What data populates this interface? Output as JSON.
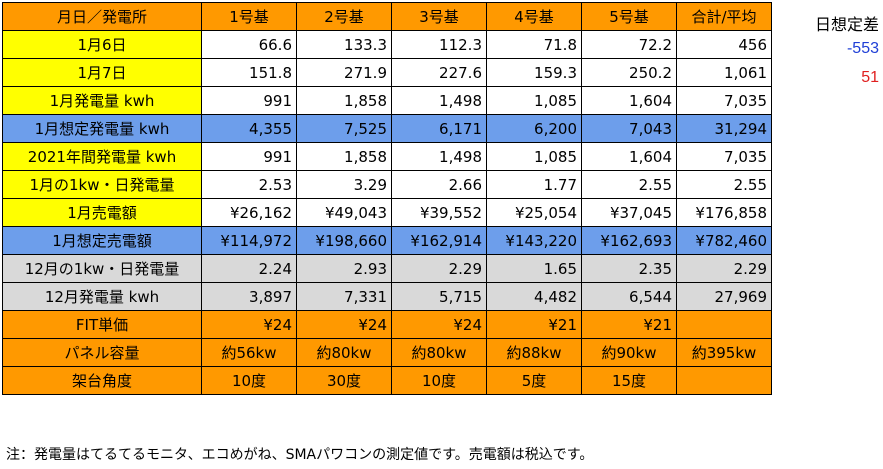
{
  "header": {
    "label": "月日／発電所",
    "columns": [
      "1号基",
      "2号基",
      "3号基",
      "4号基",
      "5号基",
      "合計/平均"
    ]
  },
  "rows": [
    {
      "label": "1月6日",
      "label_bg": "yellow",
      "cell_bg": "white",
      "align": "num",
      "values": [
        "66.6",
        "133.3",
        "112.3",
        "71.8",
        "72.2",
        "456"
      ]
    },
    {
      "label": "1月7日",
      "label_bg": "yellow",
      "cell_bg": "white",
      "align": "num",
      "values": [
        "151.8",
        "271.9",
        "227.6",
        "159.3",
        "250.2",
        "1,061"
      ]
    },
    {
      "label": "1月発電量 kwh",
      "label_bg": "yellow",
      "cell_bg": "white",
      "align": "num",
      "values": [
        "991",
        "1,858",
        "1,498",
        "1,085",
        "1,604",
        "7,035"
      ]
    },
    {
      "label": "1月想定発電量 kwh",
      "label_bg": "blue",
      "cell_bg": "blue",
      "align": "num",
      "values": [
        "4,355",
        "7,525",
        "6,171",
        "6,200",
        "7,043",
        "31,294"
      ]
    },
    {
      "label": "2021年間発電量 kwh",
      "label_bg": "yellow",
      "cell_bg": "white",
      "align": "num",
      "values": [
        "991",
        "1,858",
        "1,498",
        "1,085",
        "1,604",
        "7,035"
      ]
    },
    {
      "label": "1月の1kw・日発電量",
      "label_bg": "yellow",
      "cell_bg": "white",
      "align": "num",
      "values": [
        "2.53",
        "3.29",
        "2.66",
        "1.77",
        "2.55",
        "2.55"
      ]
    },
    {
      "label": "1月売電額",
      "label_bg": "yellow",
      "cell_bg": "white",
      "align": "num",
      "values": [
        "¥26,162",
        "¥49,043",
        "¥39,552",
        "¥25,054",
        "¥37,045",
        "¥176,858"
      ]
    },
    {
      "label": "1月想定売電額",
      "label_bg": "blue",
      "cell_bg": "blue",
      "align": "num",
      "values": [
        "¥114,972",
        "¥198,660",
        "¥162,914",
        "¥143,220",
        "¥162,693",
        "¥782,460"
      ]
    },
    {
      "label": "12月の1kw・日発電量",
      "label_bg": "gray",
      "cell_bg": "gray",
      "align": "num",
      "values": [
        "2.24",
        "2.93",
        "2.29",
        "1.65",
        "2.35",
        "2.29"
      ]
    },
    {
      "label": "12月発電量 kwh",
      "label_bg": "gray",
      "cell_bg": "gray",
      "align": "num",
      "values": [
        "3,897",
        "7,331",
        "5,715",
        "4,482",
        "6,544",
        "27,969"
      ]
    },
    {
      "label": "FIT単価",
      "label_bg": "orange",
      "cell_bg": "orange",
      "align": "num",
      "values": [
        "¥24",
        "¥24",
        "¥24",
        "¥21",
        "¥21",
        ""
      ]
    },
    {
      "label": "パネル容量",
      "label_bg": "orange",
      "cell_bg": "orange",
      "align": "ctr",
      "values": [
        "約56kw",
        "約80kw",
        "約80kw",
        "約88kw",
        "約90kw",
        "約395kw"
      ]
    },
    {
      "label": "架台角度",
      "label_bg": "orange",
      "cell_bg": "orange",
      "align": "ctr",
      "values": [
        "10度",
        "30度",
        "10度",
        "5度",
        "15度",
        ""
      ]
    }
  ],
  "side": {
    "title": "日想定差",
    "values": [
      {
        "text": "-553",
        "color": "#1F3FD6"
      },
      {
        "text": "51",
        "color": "#E02020"
      }
    ]
  },
  "footnote": "注：発電量はてるてるモニタ、エコめがね、SMAパワコンの測定値です。売電額は税込です。"
}
